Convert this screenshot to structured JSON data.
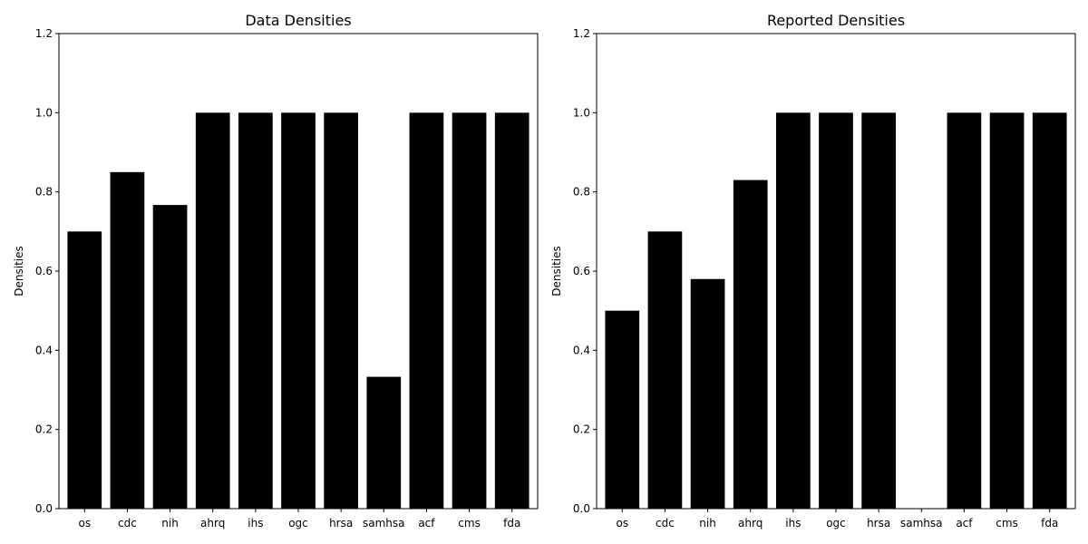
{
  "chart_data": [
    {
      "type": "bar",
      "title": "Data Densities",
      "xlabel": "",
      "ylabel": "Densities",
      "ylim": [
        0,
        1.2
      ],
      "yticks": [
        "0.0",
        "0.2",
        "0.4",
        "0.6",
        "0.8",
        "1.0",
        "1.2"
      ],
      "categories": [
        "os",
        "cdc",
        "nih",
        "ahrq",
        "ihs",
        "ogc",
        "hrsa",
        "samhsa",
        "acf",
        "cms",
        "fda"
      ],
      "values": [
        0.7,
        0.85,
        0.767,
        1.0,
        1.0,
        1.0,
        1.0,
        0.333,
        1.0,
        1.0,
        1.0
      ],
      "bar_color": "#000000",
      "grid": false
    },
    {
      "type": "bar",
      "title": "Reported Densities",
      "xlabel": "",
      "ylabel": "Densities",
      "ylim": [
        0,
        1.2
      ],
      "yticks": [
        "0.0",
        "0.2",
        "0.4",
        "0.6",
        "0.8",
        "1.0",
        "1.2"
      ],
      "categories": [
        "os",
        "cdc",
        "nih",
        "ahrq",
        "ihs",
        "ogc",
        "hrsa",
        "samhsa",
        "acf",
        "cms",
        "fda"
      ],
      "values": [
        0.5,
        0.7,
        0.58,
        0.83,
        1.0,
        1.0,
        1.0,
        0.0,
        1.0,
        1.0,
        1.0
      ],
      "bar_color": "#000000",
      "grid": false
    }
  ]
}
